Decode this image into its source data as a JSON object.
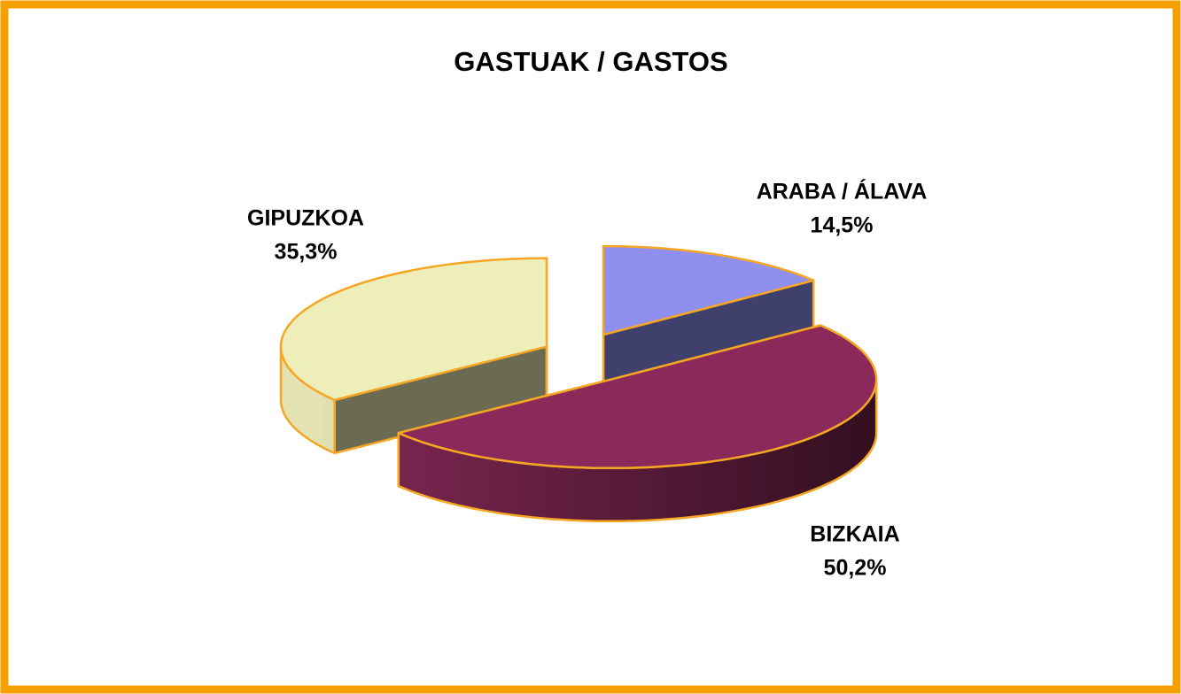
{
  "chart_data": {
    "type": "pie",
    "title": "GASTUAK / GASTOS",
    "categories": [
      "ARABA / ÁLAVA",
      "BIZKAIA",
      "GIPUZKOA"
    ],
    "values": [
      14.5,
      50.2,
      35.3
    ],
    "value_labels": [
      "14,5%",
      "50,2%",
      "35,3%"
    ],
    "colors": [
      "#8f8fef",
      "#8b2a5a",
      "#eeeebb"
    ]
  }
}
